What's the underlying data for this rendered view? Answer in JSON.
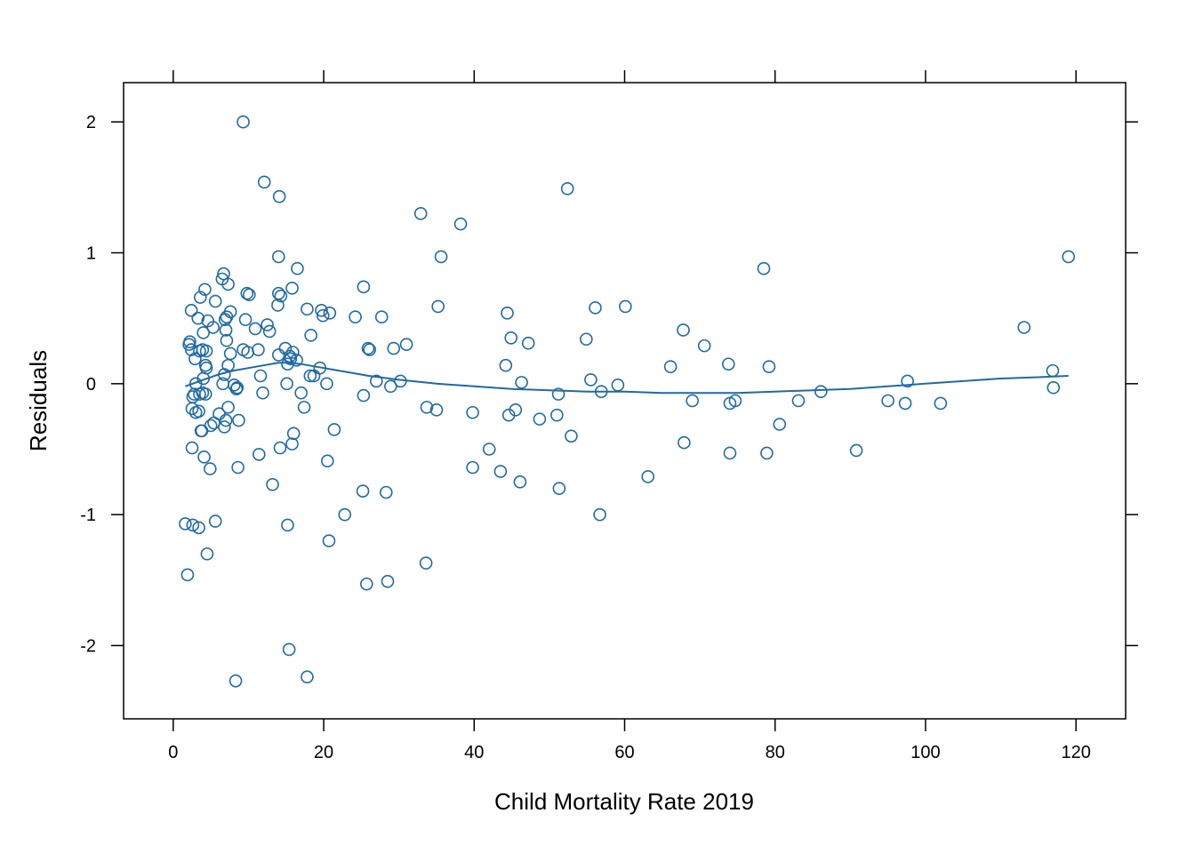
{
  "chart_data": {
    "type": "scatter",
    "xlabel": "Child Mortality Rate 2019",
    "ylabel": "Residuals",
    "xlim": [
      -6.6,
      126.6
    ],
    "ylim": [
      -2.56,
      2.3
    ],
    "xticks": [
      0,
      20,
      40,
      60,
      80,
      100,
      120
    ],
    "yticks": [
      -2,
      -1,
      0,
      1,
      2
    ],
    "grid": false,
    "legend": "none",
    "colors": {
      "points": "#1f6aa5",
      "smooth": "#1f6aa5",
      "axes": "#000000"
    },
    "points": [
      [
        1.6,
        -1.07
      ],
      [
        1.9,
        -1.46
      ],
      [
        2.1,
        0.3
      ],
      [
        2.2,
        0.32
      ],
      [
        2.4,
        0.56
      ],
      [
        2.4,
        0.26
      ],
      [
        2.5,
        -0.49
      ],
      [
        2.5,
        -0.19
      ],
      [
        2.6,
        -0.1
      ],
      [
        2.6,
        -1.08
      ],
      [
        2.8,
        -0.08
      ],
      [
        2.9,
        0.19
      ],
      [
        3.0,
        0.0
      ],
      [
        3.0,
        -0.22
      ],
      [
        3.3,
        0.5
      ],
      [
        3.4,
        -1.1
      ],
      [
        3.4,
        -0.21
      ],
      [
        3.5,
        0.25
      ],
      [
        3.5,
        -0.08
      ],
      [
        3.6,
        0.66
      ],
      [
        3.7,
        -0.36
      ],
      [
        3.8,
        -0.36
      ],
      [
        3.9,
        0.26
      ],
      [
        3.9,
        -0.07
      ],
      [
        4.0,
        0.04
      ],
      [
        4.0,
        0.39
      ],
      [
        4.1,
        -0.56
      ],
      [
        4.2,
        0.72
      ],
      [
        4.3,
        -0.08
      ],
      [
        4.3,
        0.14
      ],
      [
        4.4,
        0.12
      ],
      [
        4.4,
        0.25
      ],
      [
        4.5,
        -1.3
      ],
      [
        4.6,
        0.48
      ],
      [
        4.9,
        -0.65
      ],
      [
        5.0,
        -0.32
      ],
      [
        5.3,
        0.43
      ],
      [
        5.4,
        -0.3
      ],
      [
        5.6,
        0.63
      ],
      [
        5.6,
        -1.05
      ],
      [
        6.1,
        -0.23
      ],
      [
        6.5,
        0.8
      ],
      [
        6.6,
        0.0
      ],
      [
        6.7,
        0.84
      ],
      [
        6.8,
        -0.33
      ],
      [
        6.8,
        0.07
      ],
      [
        6.9,
        0.49
      ],
      [
        7.0,
        -0.28
      ],
      [
        7.0,
        0.41
      ],
      [
        7.1,
        0.51
      ],
      [
        7.1,
        0.33
      ],
      [
        7.3,
        0.14
      ],
      [
        7.3,
        -0.18
      ],
      [
        7.3,
        0.76
      ],
      [
        7.6,
        0.23
      ],
      [
        7.6,
        0.55
      ],
      [
        8.1,
        -0.01
      ],
      [
        8.3,
        -2.27
      ],
      [
        8.4,
        -0.04
      ],
      [
        8.5,
        -0.03
      ],
      [
        8.6,
        -0.64
      ],
      [
        8.7,
        -0.28
      ],
      [
        9.3,
        2.0
      ],
      [
        9.3,
        0.26
      ],
      [
        9.6,
        0.49
      ],
      [
        9.8,
        0.69
      ],
      [
        9.9,
        0.24
      ],
      [
        10.1,
        0.68
      ],
      [
        10.9,
        0.42
      ],
      [
        11.3,
        0.26
      ],
      [
        11.4,
        -0.54
      ],
      [
        11.6,
        0.06
      ],
      [
        11.9,
        -0.07
      ],
      [
        12.1,
        1.54
      ],
      [
        12.5,
        0.45
      ],
      [
        12.8,
        0.4
      ],
      [
        13.2,
        -0.77
      ],
      [
        13.9,
        0.6
      ],
      [
        14.0,
        0.97
      ],
      [
        14.0,
        0.69
      ],
      [
        14.0,
        0.22
      ],
      [
        14.1,
        1.43
      ],
      [
        14.2,
        -0.49
      ],
      [
        14.3,
        0.67
      ],
      [
        14.9,
        0.27
      ],
      [
        15.1,
        0.0
      ],
      [
        15.2,
        0.15
      ],
      [
        15.2,
        -1.08
      ],
      [
        15.4,
        -2.03
      ],
      [
        15.5,
        0.21
      ],
      [
        15.6,
        0.19
      ],
      [
        15.8,
        0.73
      ],
      [
        15.8,
        -0.46
      ],
      [
        15.9,
        0.24
      ],
      [
        16.0,
        -0.38
      ],
      [
        16.4,
        0.18
      ],
      [
        16.5,
        0.88
      ],
      [
        17.0,
        -0.07
      ],
      [
        17.4,
        -0.18
      ],
      [
        17.8,
        -2.24
      ],
      [
        17.8,
        0.57
      ],
      [
        18.2,
        0.06
      ],
      [
        18.3,
        0.37
      ],
      [
        18.7,
        0.06
      ],
      [
        19.5,
        0.12
      ],
      [
        19.7,
        0.56
      ],
      [
        19.9,
        0.52
      ],
      [
        20.4,
        0.0
      ],
      [
        20.5,
        -0.59
      ],
      [
        20.7,
        -1.2
      ],
      [
        20.8,
        0.54
      ],
      [
        21.4,
        -0.35
      ],
      [
        22.8,
        -1.0
      ],
      [
        24.2,
        0.51
      ],
      [
        25.2,
        -0.82
      ],
      [
        25.3,
        -0.09
      ],
      [
        25.3,
        0.74
      ],
      [
        25.7,
        -1.53
      ],
      [
        25.9,
        0.27
      ],
      [
        26.1,
        0.26
      ],
      [
        27.0,
        0.02
      ],
      [
        27.7,
        0.51
      ],
      [
        28.3,
        -0.83
      ],
      [
        28.5,
        -1.51
      ],
      [
        28.9,
        -0.02
      ],
      [
        29.3,
        0.27
      ],
      [
        30.2,
        0.02
      ],
      [
        31.0,
        0.3
      ],
      [
        32.9,
        1.3
      ],
      [
        33.6,
        -1.37
      ],
      [
        33.7,
        -0.18
      ],
      [
        35.0,
        -0.2
      ],
      [
        35.2,
        0.59
      ],
      [
        35.6,
        0.97
      ],
      [
        38.2,
        1.22
      ],
      [
        39.8,
        -0.22
      ],
      [
        39.8,
        -0.64
      ],
      [
        42.0,
        -0.5
      ],
      [
        43.5,
        -0.67
      ],
      [
        44.2,
        0.14
      ],
      [
        44.4,
        0.54
      ],
      [
        44.6,
        -0.24
      ],
      [
        44.9,
        0.35
      ],
      [
        45.5,
        -0.2
      ],
      [
        46.1,
        -0.75
      ],
      [
        46.3,
        0.01
      ],
      [
        47.2,
        0.31
      ],
      [
        48.7,
        -0.27
      ],
      [
        51.0,
        -0.24
      ],
      [
        51.2,
        -0.08
      ],
      [
        51.3,
        -0.8
      ],
      [
        52.4,
        1.49
      ],
      [
        52.9,
        -0.4
      ],
      [
        54.9,
        0.34
      ],
      [
        55.5,
        0.03
      ],
      [
        56.1,
        0.58
      ],
      [
        56.7,
        -1.0
      ],
      [
        56.9,
        -0.06
      ],
      [
        59.1,
        -0.01
      ],
      [
        60.1,
        0.59
      ],
      [
        63.1,
        -0.71
      ],
      [
        66.1,
        0.13
      ],
      [
        67.8,
        0.41
      ],
      [
        67.9,
        -0.45
      ],
      [
        69.0,
        -0.13
      ],
      [
        70.6,
        0.29
      ],
      [
        73.8,
        0.15
      ],
      [
        74.0,
        -0.53
      ],
      [
        74.0,
        -0.15
      ],
      [
        74.7,
        -0.13
      ],
      [
        78.5,
        0.88
      ],
      [
        78.9,
        -0.53
      ],
      [
        79.2,
        0.13
      ],
      [
        80.6,
        -0.31
      ],
      [
        83.1,
        -0.13
      ],
      [
        86.1,
        -0.06
      ],
      [
        90.8,
        -0.51
      ],
      [
        95.0,
        -0.13
      ],
      [
        97.3,
        -0.15
      ],
      [
        97.6,
        0.02
      ],
      [
        102.0,
        -0.15
      ],
      [
        113.1,
        0.43
      ],
      [
        116.9,
        0.1
      ],
      [
        117.0,
        -0.03
      ],
      [
        119.0,
        0.97
      ]
    ],
    "smooth_line": [
      [
        1.6,
        -0.02
      ],
      [
        4,
        0.03
      ],
      [
        6,
        0.07
      ],
      [
        8,
        0.1
      ],
      [
        10,
        0.12
      ],
      [
        12,
        0.14
      ],
      [
        14,
        0.16
      ],
      [
        15.5,
        0.16
      ],
      [
        17,
        0.15
      ],
      [
        19,
        0.13
      ],
      [
        22,
        0.1
      ],
      [
        26,
        0.06
      ],
      [
        30,
        0.03
      ],
      [
        35,
        0.0
      ],
      [
        40,
        -0.02
      ],
      [
        45,
        -0.04
      ],
      [
        50,
        -0.05
      ],
      [
        55,
        -0.06
      ],
      [
        60,
        -0.06
      ],
      [
        65,
        -0.07
      ],
      [
        70,
        -0.07
      ],
      [
        75,
        -0.07
      ],
      [
        80,
        -0.06
      ],
      [
        85,
        -0.05
      ],
      [
        90,
        -0.04
      ],
      [
        95,
        -0.02
      ],
      [
        100,
        0.0
      ],
      [
        105,
        0.02
      ],
      [
        110,
        0.04
      ],
      [
        115,
        0.05
      ],
      [
        119,
        0.06
      ]
    ]
  }
}
